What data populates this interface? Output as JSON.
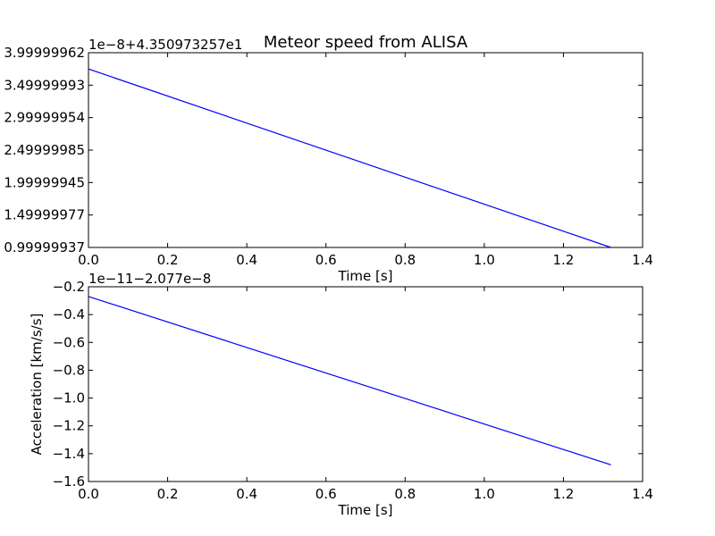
{
  "chart_data": [
    {
      "type": "line",
      "title": "Meteor speed from ALISA",
      "xlabel": "Time [s]",
      "ylabel": "",
      "offset_text": "1e−8+4.350973257e1",
      "xlim": [
        0.0,
        1.4
      ],
      "ylim": [
        0.99999937,
        3.99999962
      ],
      "xticks": [
        "0.0",
        "0.2",
        "0.4",
        "0.6",
        "0.8",
        "1.0",
        "1.2",
        "1.4"
      ],
      "yticks": [
        "0.99999937",
        "1.49999977",
        "1.99999945",
        "2.49999985",
        "2.99999954",
        "3.49999993",
        "3.99999962"
      ],
      "yticks_display": [
        "0.99999937",
        "1.49999977",
        "1.99999945",
        "2.49999985",
        "2.99999954",
        "3.49999993",
        "3.99999962"
      ],
      "grid": false,
      "series": [
        {
          "color": "#0000ff",
          "x": [
            0.0,
            1.32
          ],
          "y": [
            3.749,
            0.99999937
          ]
        }
      ]
    },
    {
      "type": "line",
      "title": "",
      "xlabel": "Time [s]",
      "ylabel": "Acceleration [km/s/s]",
      "offset_text": "1e−11−2.077e−8",
      "xlim": [
        0.0,
        1.4
      ],
      "ylim": [
        -1.6,
        -0.2
      ],
      "xticks": [
        "0.0",
        "0.2",
        "0.4",
        "0.6",
        "0.8",
        "1.0",
        "1.2",
        "1.4"
      ],
      "yticks": [
        "−1.6",
        "−1.4",
        "−1.2",
        "−1.0",
        "−0.8",
        "−0.6",
        "−0.4",
        "−0.2"
      ],
      "grid": false,
      "series": [
        {
          "color": "#0000ff",
          "x": [
            0.0,
            1.32
          ],
          "y": [
            -0.27,
            -1.48
          ]
        }
      ]
    }
  ]
}
